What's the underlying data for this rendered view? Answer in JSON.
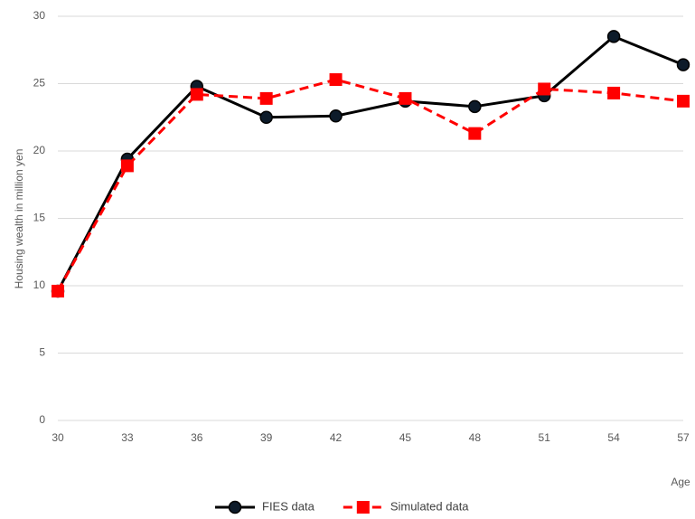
{
  "chart_data": {
    "type": "line",
    "x": [
      30,
      33,
      36,
      39,
      42,
      45,
      48,
      51,
      54,
      57
    ],
    "series": [
      {
        "name": "FIES data",
        "color": "#000000",
        "marker": "circle",
        "dashed": false,
        "values": [
          9.6,
          19.4,
          24.8,
          22.5,
          22.6,
          23.7,
          23.3,
          24.1,
          28.5,
          26.4
        ]
      },
      {
        "name": "Simulated data",
        "color": "#ff0000",
        "marker": "square",
        "dashed": true,
        "values": [
          9.6,
          18.9,
          24.2,
          23.9,
          25.3,
          23.9,
          21.3,
          24.6,
          24.3,
          23.7
        ]
      }
    ],
    "xlabel": "Age",
    "ylabel": "Housing wealth in million yen",
    "xlim": [
      30,
      57
    ],
    "xticks": [
      30,
      33,
      36,
      39,
      42,
      45,
      48,
      51,
      54,
      57
    ],
    "ylim": [
      0,
      30
    ],
    "yticks": [
      0,
      5,
      10,
      15,
      20,
      25,
      30
    ],
    "grid": true,
    "legend": "bottom"
  }
}
